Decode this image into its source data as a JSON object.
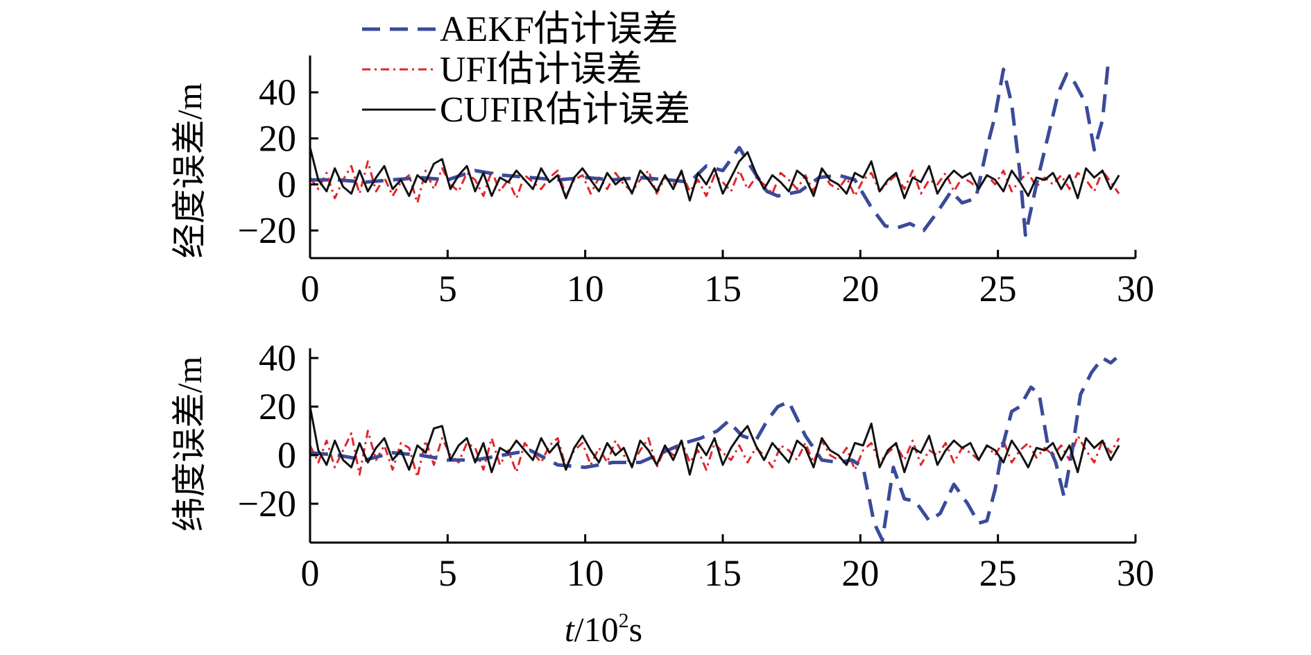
{
  "chart_data": [
    {
      "type": "line",
      "panel": "top",
      "ylabel": "经度误差/m",
      "xlabel": "",
      "xlim": [
        0,
        30
      ],
      "ylim": [
        -32,
        56
      ],
      "xticks": [
        0,
        5,
        10,
        15,
        20,
        25,
        30
      ],
      "xtick_labels": [
        "0",
        "5",
        "10",
        "15",
        "20",
        "25",
        "30"
      ],
      "yticks": [
        -20,
        0,
        20,
        40
      ],
      "ytick_labels": [
        "−20",
        "0",
        "20",
        "40"
      ],
      "grid": false,
      "legend": {
        "placement": "top-left",
        "entries": [
          "AEKF估计误差",
          "UFI估计误差",
          "CUFIR估计误差"
        ]
      },
      "series": [
        {
          "name": "AEKF估计误差",
          "color": "#3b4a9a",
          "style": "dashed",
          "x": [
            0,
            1,
            2,
            3,
            4,
            5,
            6,
            7,
            8,
            9,
            10,
            11,
            12,
            13,
            13.8,
            14.4,
            15.0,
            15.6,
            16.0,
            16.6,
            17.0,
            17.8,
            18.5,
            19.2,
            19.8,
            20.4,
            20.9,
            21.3,
            21.8,
            22.3,
            22.8,
            23.3,
            23.7,
            24.2,
            24.6,
            24.9,
            25.2,
            25.5,
            25.8,
            26.0,
            26.4,
            26.8,
            27.2,
            27.5,
            27.8,
            28.2,
            28.5,
            28.8,
            29.0
          ],
          "y": [
            2,
            2,
            1,
            2,
            3,
            2,
            6,
            4,
            3,
            2,
            3,
            2,
            3,
            2,
            1,
            8,
            6,
            16,
            8,
            -3,
            -5,
            -3,
            3,
            4,
            2,
            -10,
            -18,
            -19,
            -17,
            -20,
            -12,
            -3,
            -8,
            -6,
            16,
            30,
            50,
            35,
            5,
            -22,
            0,
            20,
            40,
            48,
            44,
            35,
            15,
            28,
            52
          ]
        },
        {
          "name": "UFI估计误差",
          "color": "#e0262a",
          "style": "dash-dot",
          "x": [
            0,
            0.3,
            0.6,
            0.9,
            1.2,
            1.5,
            1.8,
            2.1,
            2.4,
            2.7,
            3.0,
            3.3,
            3.6,
            3.9,
            4.2,
            4.5,
            4.8,
            5.1,
            5.4,
            5.7,
            6.0,
            6.3,
            6.6,
            6.9,
            7.2,
            7.5,
            7.8,
            8.1,
            8.4,
            8.7,
            9.0,
            9.3,
            9.6,
            9.9,
            10.2,
            10.5,
            10.8,
            11.1,
            11.4,
            11.7,
            12.0,
            12.3,
            12.6,
            12.9,
            13.2,
            13.5,
            13.8,
            14.1,
            14.4,
            14.7,
            15.0,
            15.3,
            15.6,
            15.9,
            16.2,
            16.5,
            16.8,
            17.1,
            17.4,
            17.7,
            18.0,
            18.3,
            18.6,
            18.9,
            19.2,
            19.5,
            19.8,
            20.1,
            20.4,
            20.7,
            21.0,
            21.3,
            21.6,
            21.9,
            22.2,
            22.5,
            22.8,
            23.1,
            23.4,
            23.7,
            24.0,
            24.3,
            24.6,
            24.9,
            25.2,
            25.5,
            25.8,
            26.1,
            26.4,
            26.7,
            27.0,
            27.3,
            27.6,
            27.9,
            28.2,
            28.5,
            28.8,
            29.1,
            29.4
          ],
          "y": [
            3,
            -2,
            5,
            -6,
            2,
            8,
            -4,
            10,
            -3,
            3,
            -5,
            1,
            4,
            -8,
            6,
            -2,
            7,
            0,
            -3,
            5,
            2,
            -5,
            6,
            -3,
            2,
            -6,
            4,
            1,
            -2,
            3,
            6,
            -5,
            2,
            4,
            -4,
            3,
            -2,
            5,
            0,
            -3,
            2,
            6,
            -4,
            3,
            0,
            5,
            -3,
            2,
            -5,
            4,
            1,
            -3,
            6,
            -2,
            3,
            0,
            -4,
            5,
            2,
            -2,
            4,
            -3,
            6,
            0,
            -2,
            3,
            -5,
            2,
            5,
            -3,
            1,
            4,
            -2,
            6,
            -4,
            2,
            0,
            5,
            -3,
            3,
            1,
            -2,
            4,
            0,
            6,
            -3,
            2,
            5,
            -1,
            3,
            0,
            4,
            -2,
            5,
            2,
            -3,
            6,
            1,
            -4
          ]
        },
        {
          "name": "CUFIR估计误差",
          "color": "#111111",
          "style": "solid",
          "x": [
            0,
            0.3,
            0.6,
            0.9,
            1.2,
            1.5,
            1.8,
            2.1,
            2.4,
            2.7,
            3.0,
            3.3,
            3.6,
            3.9,
            4.2,
            4.5,
            4.8,
            5.1,
            5.4,
            5.7,
            6.0,
            6.3,
            6.6,
            6.9,
            7.2,
            7.5,
            7.8,
            8.1,
            8.4,
            8.7,
            9.0,
            9.3,
            9.6,
            9.9,
            10.2,
            10.5,
            10.8,
            11.1,
            11.4,
            11.7,
            12.0,
            12.3,
            12.6,
            12.9,
            13.2,
            13.5,
            13.8,
            14.1,
            14.4,
            14.7,
            15.0,
            15.3,
            15.6,
            15.9,
            16.2,
            16.5,
            16.8,
            17.1,
            17.4,
            17.7,
            18.0,
            18.3,
            18.6,
            18.9,
            19.2,
            19.5,
            19.8,
            20.1,
            20.4,
            20.7,
            21.0,
            21.3,
            21.6,
            21.9,
            22.2,
            22.5,
            22.8,
            23.1,
            23.4,
            23.7,
            24.0,
            24.3,
            24.6,
            24.9,
            25.2,
            25.5,
            25.8,
            26.1,
            26.4,
            26.7,
            27.0,
            27.3,
            27.6,
            27.9,
            28.2,
            28.5,
            28.8,
            29.1,
            29.4
          ],
          "y": [
            16,
            2,
            -3,
            7,
            -1,
            -4,
            6,
            -3,
            3,
            8,
            -2,
            2,
            -5,
            4,
            1,
            9,
            11,
            -2,
            4,
            8,
            -3,
            5,
            -5,
            3,
            1,
            6,
            2,
            -2,
            7,
            1,
            4,
            -6,
            3,
            7,
            2,
            -3,
            5,
            0,
            3,
            -4,
            6,
            2,
            -3,
            4,
            -2,
            6,
            -7,
            5,
            0,
            7,
            -4,
            3,
            10,
            14,
            5,
            -2,
            4,
            1,
            -3,
            6,
            3,
            -5,
            7,
            2,
            0,
            -4,
            5,
            3,
            10,
            -3,
            2,
            5,
            -6,
            3,
            1,
            8,
            -4,
            2,
            6,
            3,
            5,
            -2,
            4,
            2,
            -3,
            6,
            1,
            -5,
            3,
            2,
            5,
            -2,
            4,
            -6,
            7,
            3,
            6,
            -2,
            4
          ]
        }
      ]
    },
    {
      "type": "line",
      "panel": "bottom",
      "ylabel": "纬度误差/m",
      "xlabel": "t/10²s",
      "xlabel_parts": {
        "var": "t",
        "rest": "/10",
        "sup": "2",
        "unit": "s"
      },
      "xlim": [
        0,
        30
      ],
      "ylim": [
        -36,
        44
      ],
      "xticks": [
        0,
        5,
        10,
        15,
        20,
        25,
        30
      ],
      "xtick_labels": [
        "0",
        "5",
        "10",
        "15",
        "20",
        "25",
        "30"
      ],
      "yticks": [
        -20,
        0,
        20,
        40
      ],
      "ytick_labels": [
        "−20",
        "0",
        "20",
        "40"
      ],
      "grid": false,
      "series": [
        {
          "name": "AEKF估计误差",
          "color": "#3b4a9a",
          "style": "dashed",
          "x": [
            0,
            1,
            2,
            3,
            4,
            5,
            6,
            7,
            8,
            9,
            10,
            11,
            12,
            13,
            13.6,
            14.2,
            14.8,
            15.2,
            15.7,
            16.2,
            16.6,
            17.0,
            17.4,
            18.0,
            18.6,
            19.2,
            19.7,
            20.1,
            20.5,
            20.8,
            21.2,
            21.6,
            22.0,
            22.5,
            22.9,
            23.4,
            23.9,
            24.3,
            24.6,
            24.9,
            25.2,
            25.5,
            25.8,
            26.2,
            26.5,
            26.8,
            27.1,
            27.4,
            27.7,
            28.0,
            28.4,
            28.8,
            29.1,
            29.3
          ],
          "y": [
            1,
            0,
            -2,
            1,
            0,
            -2,
            -2,
            0,
            2,
            -4,
            -5,
            -3,
            -3,
            2,
            5,
            7,
            10,
            14,
            8,
            6,
            14,
            20,
            22,
            8,
            -2,
            -3,
            -2,
            -5,
            -28,
            -35,
            -5,
            -18,
            -19,
            -27,
            -24,
            -12,
            -20,
            -28,
            -27,
            -14,
            5,
            18,
            20,
            28,
            25,
            5,
            -3,
            -17,
            2,
            25,
            34,
            40,
            38,
            40
          ]
        },
        {
          "name": "UFI估计误差",
          "color": "#e0262a",
          "style": "dash-dot",
          "x": [
            0,
            0.3,
            0.6,
            0.9,
            1.2,
            1.5,
            1.8,
            2.1,
            2.4,
            2.7,
            3.0,
            3.3,
            3.6,
            3.9,
            4.2,
            4.5,
            4.8,
            5.1,
            5.4,
            5.7,
            6.0,
            6.3,
            6.6,
            6.9,
            7.2,
            7.5,
            7.8,
            8.1,
            8.4,
            8.7,
            9.0,
            9.3,
            9.6,
            9.9,
            10.2,
            10.5,
            10.8,
            11.1,
            11.4,
            11.7,
            12.0,
            12.3,
            12.6,
            12.9,
            13.2,
            13.5,
            13.8,
            14.1,
            14.4,
            14.7,
            15.0,
            15.3,
            15.6,
            15.9,
            16.2,
            16.5,
            16.8,
            17.1,
            17.4,
            17.7,
            18.0,
            18.3,
            18.6,
            18.9,
            19.2,
            19.5,
            19.8,
            20.1,
            20.4,
            20.7,
            21.0,
            21.3,
            21.6,
            21.9,
            22.2,
            22.5,
            22.8,
            23.1,
            23.4,
            23.7,
            24.0,
            24.3,
            24.6,
            24.9,
            25.2,
            25.5,
            25.8,
            26.1,
            26.4,
            26.7,
            27.0,
            27.3,
            27.6,
            27.9,
            28.2,
            28.5,
            28.8,
            29.1,
            29.4
          ],
          "y": [
            4,
            -3,
            6,
            -5,
            2,
            9,
            -8,
            10,
            -2,
            4,
            -6,
            5,
            3,
            -9,
            6,
            -4,
            7,
            0,
            -3,
            5,
            3,
            -6,
            7,
            -4,
            2,
            -7,
            5,
            1,
            -3,
            4,
            7,
            -5,
            2,
            5,
            -4,
            3,
            -3,
            6,
            0,
            -4,
            2,
            7,
            -5,
            3,
            0,
            6,
            -3,
            2,
            -6,
            5,
            1,
            -2,
            4,
            -3,
            3,
            0,
            -5,
            4,
            2,
            -2,
            5,
            -3,
            6,
            0,
            -2,
            3,
            -6,
            2,
            5,
            -3,
            1,
            4,
            -2,
            6,
            -4,
            2,
            0,
            5,
            -3,
            3,
            1,
            -2,
            4,
            0,
            6,
            -3,
            2,
            5,
            -1,
            3,
            0,
            4,
            -2,
            8,
            2,
            -3,
            6,
            1,
            7
          ]
        },
        {
          "name": "CUFIR估计误差",
          "color": "#111111",
          "style": "solid",
          "x": [
            0,
            0.3,
            0.6,
            0.9,
            1.2,
            1.5,
            1.8,
            2.1,
            2.4,
            2.7,
            3.0,
            3.3,
            3.6,
            3.9,
            4.2,
            4.5,
            4.8,
            5.1,
            5.4,
            5.7,
            6.0,
            6.3,
            6.6,
            6.9,
            7.2,
            7.5,
            7.8,
            8.1,
            8.4,
            8.7,
            9.0,
            9.3,
            9.6,
            9.9,
            10.2,
            10.5,
            10.8,
            11.1,
            11.4,
            11.7,
            12.0,
            12.3,
            12.6,
            12.9,
            13.2,
            13.5,
            13.8,
            14.1,
            14.4,
            14.7,
            15.0,
            15.3,
            15.6,
            15.9,
            16.2,
            16.5,
            16.8,
            17.1,
            17.4,
            17.7,
            18.0,
            18.3,
            18.6,
            18.9,
            19.2,
            19.5,
            19.8,
            20.1,
            20.4,
            20.7,
            21.0,
            21.3,
            21.6,
            21.9,
            22.2,
            22.5,
            22.8,
            23.1,
            23.4,
            23.7,
            24.0,
            24.3,
            24.6,
            24.9,
            25.2,
            25.5,
            25.8,
            26.1,
            26.4,
            26.7,
            27.0,
            27.3,
            27.6,
            27.9,
            28.2,
            28.5,
            28.8,
            29.1,
            29.4
          ],
          "y": [
            20,
            2,
            -4,
            6,
            -2,
            -5,
            5,
            -3,
            3,
            7,
            -2,
            2,
            -6,
            4,
            1,
            11,
            12,
            -2,
            4,
            7,
            -3,
            5,
            -7,
            3,
            1,
            6,
            2,
            -2,
            7,
            1,
            5,
            -6,
            3,
            8,
            2,
            -3,
            5,
            0,
            3,
            -5,
            6,
            2,
            -4,
            4,
            -2,
            6,
            -8,
            5,
            0,
            7,
            -4,
            3,
            8,
            12,
            4,
            -2,
            5,
            1,
            -3,
            6,
            3,
            -5,
            7,
            2,
            0,
            -4,
            5,
            4,
            13,
            -5,
            2,
            5,
            -7,
            3,
            1,
            8,
            -4,
            2,
            6,
            3,
            5,
            -2,
            4,
            2,
            -3,
            6,
            1,
            -5,
            3,
            2,
            5,
            -2,
            4,
            -7,
            7,
            3,
            6,
            -2,
            4
          ]
        }
      ]
    }
  ]
}
